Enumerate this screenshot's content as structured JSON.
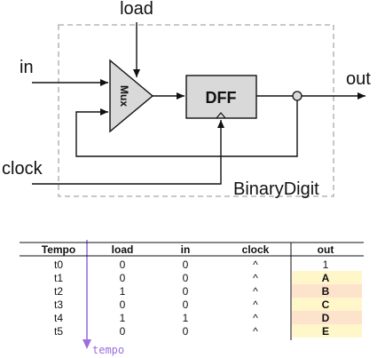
{
  "diagram": {
    "labels": {
      "load": "load",
      "in": "in",
      "out": "out",
      "clock": "clock",
      "mux": "Mux",
      "dff": "DFF",
      "chip": "BinaryDigit"
    },
    "colors": {
      "stroke": "#111111",
      "block_fill": "#d9d9d9",
      "chip_border": "#a8a8a8"
    }
  },
  "table": {
    "headers": [
      "Tempo",
      "load",
      "in",
      "clock",
      "out"
    ],
    "rows": [
      {
        "tempo": "t0",
        "load": "0",
        "in": "0",
        "clock": "^",
        "out": "1"
      },
      {
        "tempo": "t1",
        "load": "0",
        "in": "0",
        "clock": "^",
        "out": "A"
      },
      {
        "tempo": "t2",
        "load": "1",
        "in": "0",
        "clock": "^",
        "out": "B"
      },
      {
        "tempo": "t3",
        "load": "0",
        "in": "0",
        "clock": "^",
        "out": "C"
      },
      {
        "tempo": "t4",
        "load": "1",
        "in": "1",
        "clock": "^",
        "out": "D"
      },
      {
        "tempo": "t5",
        "load": "0",
        "in": "0",
        "clock": "^",
        "out": "E"
      }
    ],
    "out_fill_colors": [
      "#ffffff",
      "#fff6c9",
      "#fde3cc",
      "#fff6c9",
      "#fde3cc",
      "#fff6c9"
    ],
    "time_axis_label": "tempo",
    "time_axis_color": "#9b6fe0"
  }
}
